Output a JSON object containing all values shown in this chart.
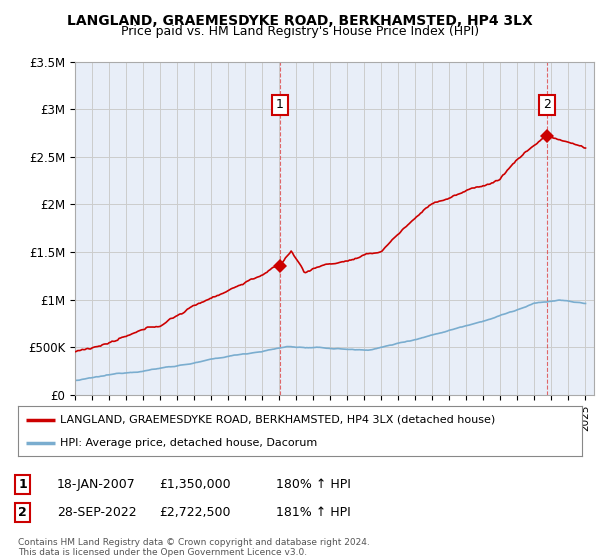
{
  "title": "LANGLAND, GRAEMESDYKE ROAD, BERKHAMSTED, HP4 3LX",
  "subtitle": "Price paid vs. HM Land Registry's House Price Index (HPI)",
  "ylim": [
    0,
    3500000
  ],
  "yticks": [
    0,
    500000,
    1000000,
    1500000,
    2000000,
    2500000,
    3000000,
    3500000
  ],
  "ytick_labels": [
    "£0",
    "£500K",
    "£1M",
    "£1.5M",
    "£2M",
    "£2.5M",
    "£3M",
    "£3.5M"
  ],
  "xlim_start": 1995.0,
  "xlim_end": 2025.5,
  "sale1_x": 2007.05,
  "sale1_y": 1350000,
  "sale1_label": "1",
  "sale2_x": 2022.74,
  "sale2_y": 2722500,
  "sale2_label": "2",
  "line_red_color": "#cc0000",
  "line_blue_color": "#7aadcf",
  "grid_color": "#cccccc",
  "legend_line1": "LANGLAND, GRAEMESDYKE ROAD, BERKHAMSTED, HP4 3LX (detached house)",
  "legend_line2": "HPI: Average price, detached house, Dacorum",
  "annotation1_date": "18-JAN-2007",
  "annotation1_price": "£1,350,000",
  "annotation1_hpi": "180% ↑ HPI",
  "annotation2_date": "28-SEP-2022",
  "annotation2_price": "£2,722,500",
  "annotation2_hpi": "181% ↑ HPI",
  "footer": "Contains HM Land Registry data © Crown copyright and database right 2024.\nThis data is licensed under the Open Government Licence v3.0.",
  "bg_color": "#ffffff",
  "plot_bg_color": "#e8eef8"
}
